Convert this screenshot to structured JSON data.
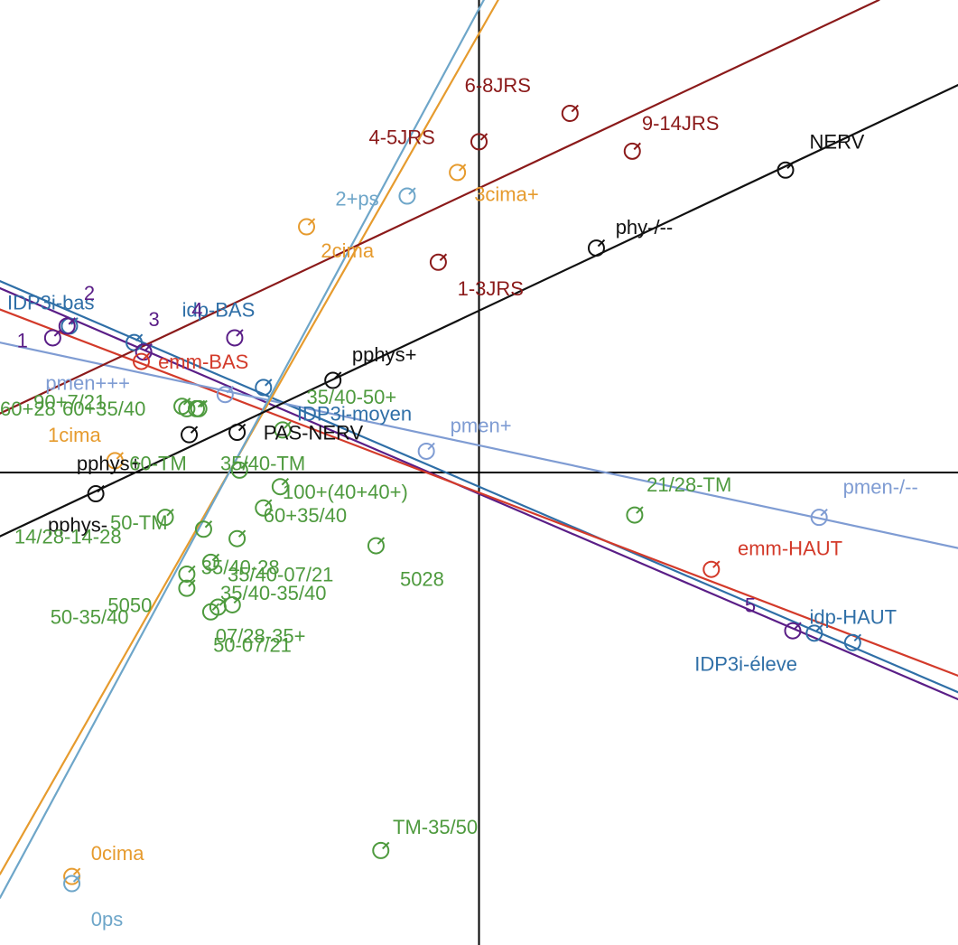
{
  "chart_data": {
    "type": "scatter",
    "title": "",
    "xlabel": "",
    "ylabel": "",
    "xlim": [
      -10,
      10
    ],
    "ylim": [
      -10,
      10
    ],
    "grid": false,
    "axes_color": "#000000",
    "series": [
      {
        "color": "#2f6fa7",
        "axis": {
          "from": [
            -10,
            4.05
          ],
          "to": [
            10,
            -4.65
          ]
        },
        "points": [
          {
            "label": "IDP3i-bas",
            "x": -8.55,
            "y": 3.1,
            "lx": -9.85,
            "ly": 3.45
          },
          {
            "label": "idp-BAS",
            "x": -7.2,
            "y": 2.75,
            "lx": -6.2,
            "ly": 3.3
          },
          {
            "label": "IDP3i-moyen",
            "x": -4.5,
            "y": 1.8,
            "lx": -3.8,
            "ly": 1.1
          },
          {
            "label": "idp-HAUT",
            "x": 7.8,
            "y": -3.6,
            "lx": 6.9,
            "ly": -3.2
          },
          {
            "label": "IDP3i-éleve",
            "x": 7.0,
            "y": -3.4,
            "lx": 4.5,
            "ly": -4.2
          }
        ]
      },
      {
        "color": "#5a1e87",
        "axis": {
          "from": [
            -10,
            3.9
          ],
          "to": [
            10,
            -4.8
          ]
        },
        "points": [
          {
            "label": "1",
            "x": -8.9,
            "y": 2.85,
            "lx": -9.65,
            "ly": 2.65
          },
          {
            "label": "2",
            "x": -8.6,
            "y": 3.1,
            "lx": -8.25,
            "ly": 3.65
          },
          {
            "label": "3",
            "x": -7.0,
            "y": 2.55,
            "lx": -6.9,
            "ly": 3.1
          },
          {
            "label": "4",
            "x": -5.1,
            "y": 2.85,
            "lx": -6.0,
            "ly": 3.3
          },
          {
            "label": "5",
            "x": 6.55,
            "y": -3.35,
            "lx": 5.55,
            "ly": -2.95
          }
        ]
      },
      {
        "color": "#d33a2a",
        "axis": {
          "from": [
            -10,
            3.45
          ],
          "to": [
            10,
            -4.3
          ]
        },
        "points": [
          {
            "label": "emm-BAS",
            "x": -7.05,
            "y": 2.35,
            "lx": -6.7,
            "ly": 2.2
          },
          {
            "label": "emm-HAUT",
            "x": 4.85,
            "y": -2.05,
            "lx": 5.4,
            "ly": -1.75
          }
        ]
      },
      {
        "color": "#7f9cd3",
        "axis": {
          "from": [
            -10,
            2.75
          ],
          "to": [
            10,
            -1.6
          ]
        },
        "points": [
          {
            "label": "pmen+++",
            "x": -5.3,
            "y": 1.65,
            "lx": -9.05,
            "ly": 1.75
          },
          {
            "label": "pmen+",
            "x": -1.1,
            "y": 0.45,
            "lx": -0.6,
            "ly": 0.85
          },
          {
            "label": "pmen-/--",
            "x": 7.1,
            "y": -0.95,
            "lx": 7.6,
            "ly": -0.45
          }
        ]
      },
      {
        "color": "#e69b2e",
        "axis": {
          "from": [
            -10,
            -8.5
          ],
          "to": [
            0.4,
            10
          ]
        },
        "points": [
          {
            "label": "0cima",
            "x": -8.5,
            "y": -8.55,
            "lx": -8.1,
            "ly": -8.2
          },
          {
            "label": "1cima",
            "x": -7.6,
            "y": 0.25,
            "lx": -9.0,
            "ly": 0.65
          },
          {
            "label": "2cima",
            "x": -3.6,
            "y": 5.2,
            "lx": -3.3,
            "ly": 4.55
          },
          {
            "label": "3cima+",
            "x": -0.45,
            "y": 6.35,
            "lx": -0.1,
            "ly": 5.75
          }
        ]
      },
      {
        "color": "#6ea6c9",
        "axis": {
          "from": [
            -10,
            -9.0
          ],
          "to": [
            0.1,
            10
          ]
        },
        "points": [
          {
            "label": "0ps",
            "x": -8.5,
            "y": -8.7,
            "lx": -8.1,
            "ly": -9.6
          },
          {
            "label": "2+ps",
            "x": -1.5,
            "y": 5.85,
            "lx": -3.0,
            "ly": 5.65
          }
        ]
      },
      {
        "color": "#8b1a1a",
        "axis": {
          "from": [
            -10,
            1.25
          ],
          "to": [
            8.35,
            10
          ]
        },
        "points": [
          {
            "label": "1-3JRS",
            "x": -0.85,
            "y": 4.45,
            "lx": -0.45,
            "ly": 3.75
          },
          {
            "label": "4-5JRS",
            "x": 0.0,
            "y": 7.0,
            "lx": -2.3,
            "ly": 6.95
          },
          {
            "label": "6-8JRS",
            "x": 1.9,
            "y": 7.6,
            "lx": -0.3,
            "ly": 8.05
          },
          {
            "label": "9-14JRS",
            "x": 3.2,
            "y": 6.8,
            "lx": 3.4,
            "ly": 7.25
          }
        ]
      },
      {
        "color": "#111111",
        "axis": {
          "from": [
            -10,
            -1.35
          ],
          "to": [
            10,
            8.2
          ]
        },
        "points": [
          {
            "label": "pphys+",
            "x": -8.0,
            "y": -0.45,
            "lx": -8.4,
            "ly": 0.05
          },
          {
            "label": "pphys-",
            "x": -6.05,
            "y": 0.8,
            "lx": -9.0,
            "ly": -1.25
          },
          {
            "label": "PAS-NERV",
            "x": -5.05,
            "y": 0.85,
            "lx": -4.5,
            "ly": 0.7
          },
          {
            "label": "pphys+",
            "x": -3.05,
            "y": 1.95,
            "lx": -2.65,
            "ly": 2.35
          },
          {
            "label": "phy-/--",
            "x": 2.45,
            "y": 4.75,
            "lx": 2.85,
            "ly": 5.05
          },
          {
            "label": "NERV",
            "x": 6.4,
            "y": 6.4,
            "lx": 6.9,
            "ly": 6.85
          }
        ]
      },
      {
        "color": "#4e9a3e",
        "axis": null,
        "points": [
          {
            "label": "60+28",
            "x": -5.9,
            "y": 1.35,
            "lx": -10.0,
            "ly": 1.2
          },
          {
            "label": "60+35/40",
            "x": -6.1,
            "y": 1.35,
            "lx": -8.7,
            "ly": 1.2
          },
          {
            "label": "90+7/21",
            "x": -6.2,
            "y": 1.4,
            "lx": -9.3,
            "ly": 1.35
          },
          {
            "label": "60-TM",
            "x": -5.85,
            "y": 1.35,
            "lx": -7.3,
            "ly": 0.05
          },
          {
            "label": "35/40-TM",
            "x": -5.0,
            "y": 0.05,
            "lx": -5.4,
            "ly": 0.05
          },
          {
            "label": "35/40-50+",
            "x": -4.1,
            "y": 0.9,
            "lx": -3.6,
            "ly": 1.45
          },
          {
            "label": "100+(40+40+)",
            "x": -4.5,
            "y": -0.75,
            "lx": -4.1,
            "ly": -0.55
          },
          {
            "label": "60+35/40",
            "x": -4.15,
            "y": -0.3,
            "lx": -4.5,
            "ly": -1.05
          },
          {
            "label": "50-TM",
            "x": -6.55,
            "y": -0.95,
            "lx": -7.7,
            "ly": -1.2
          },
          {
            "label": "14/28-14-28",
            "x": -5.75,
            "y": -1.2,
            "lx": -9.7,
            "ly": -1.5
          },
          {
            "label": "35/40-28",
            "x": -5.6,
            "y": -1.9,
            "lx": -5.8,
            "ly": -2.15
          },
          {
            "label": "35/40-07/21",
            "x": -5.05,
            "y": -1.4,
            "lx": -5.25,
            "ly": -2.3
          },
          {
            "label": "5028",
            "x": -2.15,
            "y": -1.55,
            "lx": -1.65,
            "ly": -2.4
          },
          {
            "label": "5050",
            "x": -6.1,
            "y": -2.15,
            "lx": -7.75,
            "ly": -2.95
          },
          {
            "label": "35/40-35/40",
            "x": -5.15,
            "y": -2.8,
            "lx": -5.4,
            "ly": -2.7
          },
          {
            "label": "50-35/40",
            "x": -6.1,
            "y": -2.45,
            "lx": -8.95,
            "ly": -3.2
          },
          {
            "label": "07/28-35+",
            "x": -5.45,
            "y": -2.85,
            "lx": -5.5,
            "ly": -3.6
          },
          {
            "label": "50-07/21",
            "x": -5.6,
            "y": -2.95,
            "lx": -5.55,
            "ly": -3.8
          },
          {
            "label": "21/28-TM",
            "x": 3.25,
            "y": -0.9,
            "lx": 3.5,
            "ly": -0.4
          },
          {
            "label": "TM-35/50",
            "x": -2.05,
            "y": -8.0,
            "lx": -1.8,
            "ly": -7.65
          }
        ]
      }
    ]
  }
}
